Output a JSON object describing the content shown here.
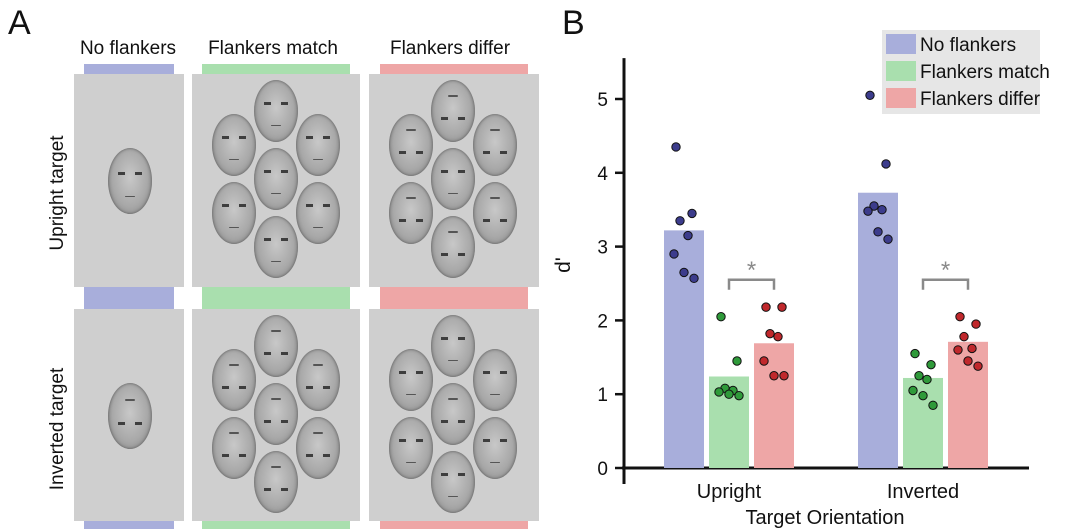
{
  "panel_a": {
    "letter": "A",
    "columns": [
      "No flankers",
      "Flankers match",
      "Flankers differ"
    ],
    "rows": [
      "Upright target",
      "Inverted target"
    ],
    "colors": {
      "no_flankers": "#a8aedb",
      "flankers_match": "#a9dfae",
      "flankers_differ": "#eea6a6"
    }
  },
  "panel_b": {
    "letter": "B"
  },
  "chart_data": {
    "type": "bar",
    "title": "",
    "xlabel": "Target Orientation",
    "ylabel": "d'",
    "categories": [
      "Upright",
      "Inverted"
    ],
    "ylim": [
      0,
      5.5
    ],
    "yticks": [
      0,
      1,
      2,
      3,
      4,
      5
    ],
    "legend_position": "top-right",
    "series": [
      {
        "name": "No flankers",
        "color": "#a8aedb",
        "dot_color": "#3c3c8c",
        "values": [
          3.22,
          3.73
        ],
        "points": [
          [
            4.35,
            3.45,
            3.35,
            3.15,
            2.9,
            2.65,
            2.57
          ],
          [
            5.05,
            4.12,
            3.55,
            3.5,
            3.48,
            3.2,
            3.1
          ]
        ]
      },
      {
        "name": "Flankers match",
        "color": "#a9dfae",
        "dot_color": "#2f9a3a",
        "values": [
          1.24,
          1.22
        ],
        "points": [
          [
            2.05,
            1.45,
            1.08,
            1.05,
            1.03,
            1.0,
            0.98
          ],
          [
            1.55,
            1.4,
            1.25,
            1.2,
            1.05,
            0.98,
            0.85
          ]
        ]
      },
      {
        "name": "Flankers differ",
        "color": "#eea6a6",
        "dot_color": "#c0282c",
        "values": [
          1.69,
          1.71
        ],
        "points": [
          [
            2.18,
            2.18,
            1.82,
            1.78,
            1.45,
            1.25,
            1.25
          ],
          [
            2.05,
            1.95,
            1.78,
            1.62,
            1.6,
            1.45,
            1.38
          ]
        ]
      }
    ],
    "annotations": [
      {
        "category": "Upright",
        "between": [
          "Flankers match",
          "Flankers differ"
        ],
        "text": "*"
      },
      {
        "category": "Inverted",
        "between": [
          "Flankers match",
          "Flankers differ"
        ],
        "text": "*"
      }
    ]
  }
}
